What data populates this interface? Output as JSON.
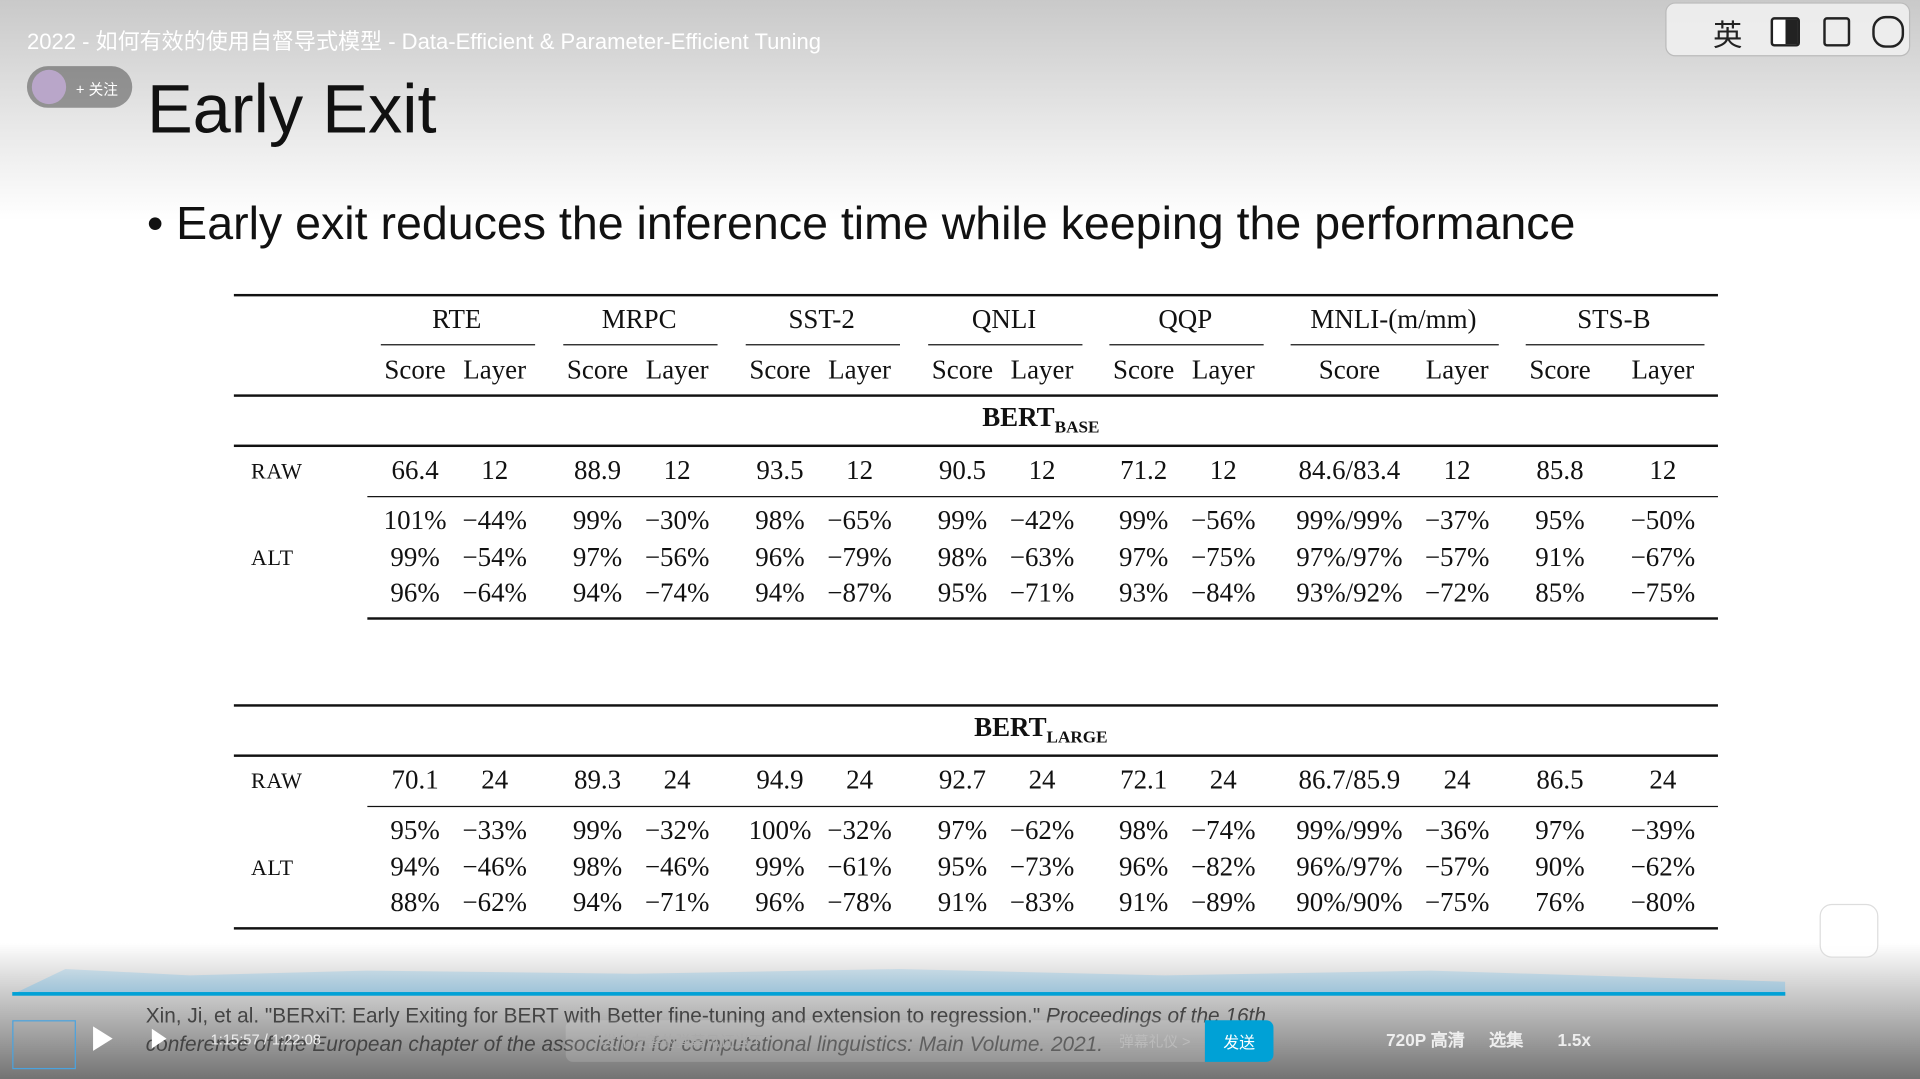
{
  "player": {
    "video_title": "2022 - 如何有效的使用自督导式模型 - Data-Efficient & Parameter-Efficient Tuning",
    "follow_button": "+ 关注",
    "toolbar_language": "英",
    "time": "1:15:57 / 1:22:08",
    "danmaku_placeholder": "发个友善的弹幕见证当下",
    "danmaku_etiquette": "弹幕礼仪 >",
    "send_button": "发送",
    "quality": "720P 高清",
    "episodes": "选集",
    "speed": "1.5x"
  },
  "slide": {
    "title": "Early Exit",
    "bullet": "Early exit reduces the inference time while keeping the performance",
    "table": {
      "tasks": [
        "RTE",
        "MRPC",
        "SST-2",
        "QNLI",
        "QQP",
        "MNLI-(m/mm)",
        "STS-B"
      ],
      "subheaders": [
        "Score",
        "Layer"
      ],
      "sections": [
        {
          "model": "BERT",
          "size": "BASE",
          "raw_label": "RAW",
          "raw": [
            "66.4",
            "12",
            "88.9",
            "12",
            "93.5",
            "12",
            "90.5",
            "12",
            "71.2",
            "12",
            "84.6/83.4",
            "12",
            "85.8",
            "12"
          ],
          "alt_label": "ALT",
          "alt": [
            [
              "101%",
              "−44%",
              "99%",
              "−30%",
              "98%",
              "−65%",
              "99%",
              "−42%",
              "99%",
              "−56%",
              "99%/99%",
              "−37%",
              "95%",
              "−50%"
            ],
            [
              "99%",
              "−54%",
              "97%",
              "−56%",
              "96%",
              "−79%",
              "98%",
              "−63%",
              "97%",
              "−75%",
              "97%/97%",
              "−57%",
              "91%",
              "−67%"
            ],
            [
              "96%",
              "−64%",
              "94%",
              "−74%",
              "94%",
              "−87%",
              "95%",
              "−71%",
              "93%",
              "−84%",
              "93%/92%",
              "−72%",
              "85%",
              "−75%"
            ]
          ]
        },
        {
          "model": "BERT",
          "size": "LARGE",
          "raw_label": "RAW",
          "raw": [
            "70.1",
            "24",
            "89.3",
            "24",
            "94.9",
            "24",
            "92.7",
            "24",
            "72.1",
            "24",
            "86.7/85.9",
            "24",
            "86.5",
            "24"
          ],
          "alt_label": "ALT",
          "alt": [
            [
              "95%",
              "−33%",
              "99%",
              "−32%",
              "100%",
              "−32%",
              "97%",
              "−62%",
              "98%",
              "−74%",
              "99%/99%",
              "−36%",
              "97%",
              "−39%"
            ],
            [
              "94%",
              "−46%",
              "98%",
              "−46%",
              "99%",
              "−61%",
              "95%",
              "−73%",
              "96%",
              "−82%",
              "96%/97%",
              "−57%",
              "90%",
              "−62%"
            ],
            [
              "88%",
              "−62%",
              "94%",
              "−71%",
              "96%",
              "−78%",
              "91%",
              "−83%",
              "91%",
              "−89%",
              "90%/90%",
              "−75%",
              "76%",
              "−80%"
            ]
          ]
        }
      ]
    },
    "citation": {
      "text": "Xin, Ji, et al. \"BERxiT: Early Exiting for BERT with Better fine-tuning and extension to regression.\"",
      "source": "Proceedings of the 16th conference of the European chapter of the association for computational linguistics: Main Volume. 2021."
    }
  }
}
